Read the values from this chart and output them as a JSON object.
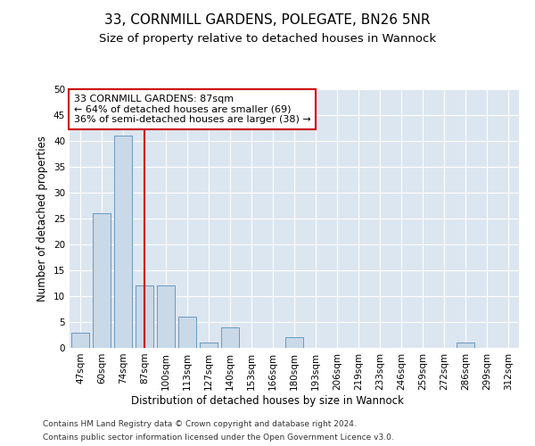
{
  "title": "33, CORNMILL GARDENS, POLEGATE, BN26 5NR",
  "subtitle": "Size of property relative to detached houses in Wannock",
  "xlabel": "Distribution of detached houses by size in Wannock",
  "ylabel": "Number of detached properties",
  "categories": [
    "47sqm",
    "60sqm",
    "74sqm",
    "87sqm",
    "100sqm",
    "113sqm",
    "127sqm",
    "140sqm",
    "153sqm",
    "166sqm",
    "180sqm",
    "193sqm",
    "206sqm",
    "219sqm",
    "233sqm",
    "246sqm",
    "259sqm",
    "272sqm",
    "286sqm",
    "299sqm",
    "312sqm"
  ],
  "values": [
    3,
    26,
    41,
    12,
    12,
    6,
    1,
    4,
    0,
    0,
    2,
    0,
    0,
    0,
    0,
    0,
    0,
    0,
    1,
    0,
    0
  ],
  "bar_color": "#c9d9e8",
  "bar_edge_color": "#5b8db8",
  "vline_index": 3,
  "vline_color": "#cc0000",
  "annotation_text": "33 CORNMILL GARDENS: 87sqm\n← 64% of detached houses are smaller (69)\n36% of semi-detached houses are larger (38) →",
  "annotation_box_color": "#ffffff",
  "annotation_box_edge": "#cc0000",
  "ylim": [
    0,
    50
  ],
  "yticks": [
    0,
    5,
    10,
    15,
    20,
    25,
    30,
    35,
    40,
    45,
    50
  ],
  "plot_bg_color": "#dce6f0",
  "footer_line1": "Contains HM Land Registry data © Crown copyright and database right 2024.",
  "footer_line2": "Contains public sector information licensed under the Open Government Licence v3.0.",
  "title_fontsize": 11,
  "subtitle_fontsize": 9.5,
  "axis_label_fontsize": 8.5,
  "tick_fontsize": 7.5,
  "annotation_fontsize": 8,
  "footer_fontsize": 6.5
}
